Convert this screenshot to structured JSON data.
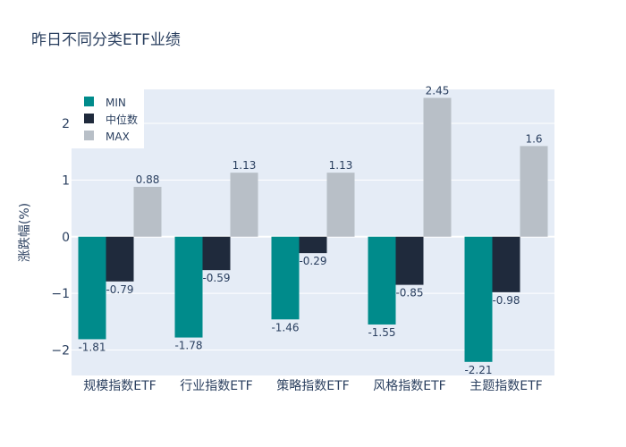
{
  "chart_data": {
    "type": "bar",
    "title": "昨日不同分类ETF业绩",
    "xlabel": "",
    "ylabel": "涨跌幅(%)",
    "ylim": [
      -2.45,
      2.6
    ],
    "yticks": [
      -2,
      -1,
      0,
      1,
      2
    ],
    "ytick_labels": [
      "−2",
      "−1",
      "0",
      "1",
      "2"
    ],
    "grid": true,
    "legend_position": "top-left",
    "categories": [
      "规模指数ETF",
      "行业指数ETF",
      "策略指数ETF",
      "风格指数ETF",
      "主题指数ETF"
    ],
    "series": [
      {
        "name": "MIN",
        "color": "#008b8b",
        "values": [
          -1.81,
          -1.78,
          -1.46,
          -1.55,
          -2.21
        ]
      },
      {
        "name": "中位数",
        "color": "#1f2a3c",
        "values": [
          -0.79,
          -0.59,
          -0.29,
          -0.85,
          -0.98
        ]
      },
      {
        "name": "MAX",
        "color": "#b8bfc7",
        "values": [
          0.88,
          1.13,
          1.13,
          2.45,
          1.6
        ]
      }
    ],
    "colors": {
      "plot_background": "#e5ecf6",
      "grid": "#ffffff",
      "text": "#2a3f5f"
    }
  }
}
